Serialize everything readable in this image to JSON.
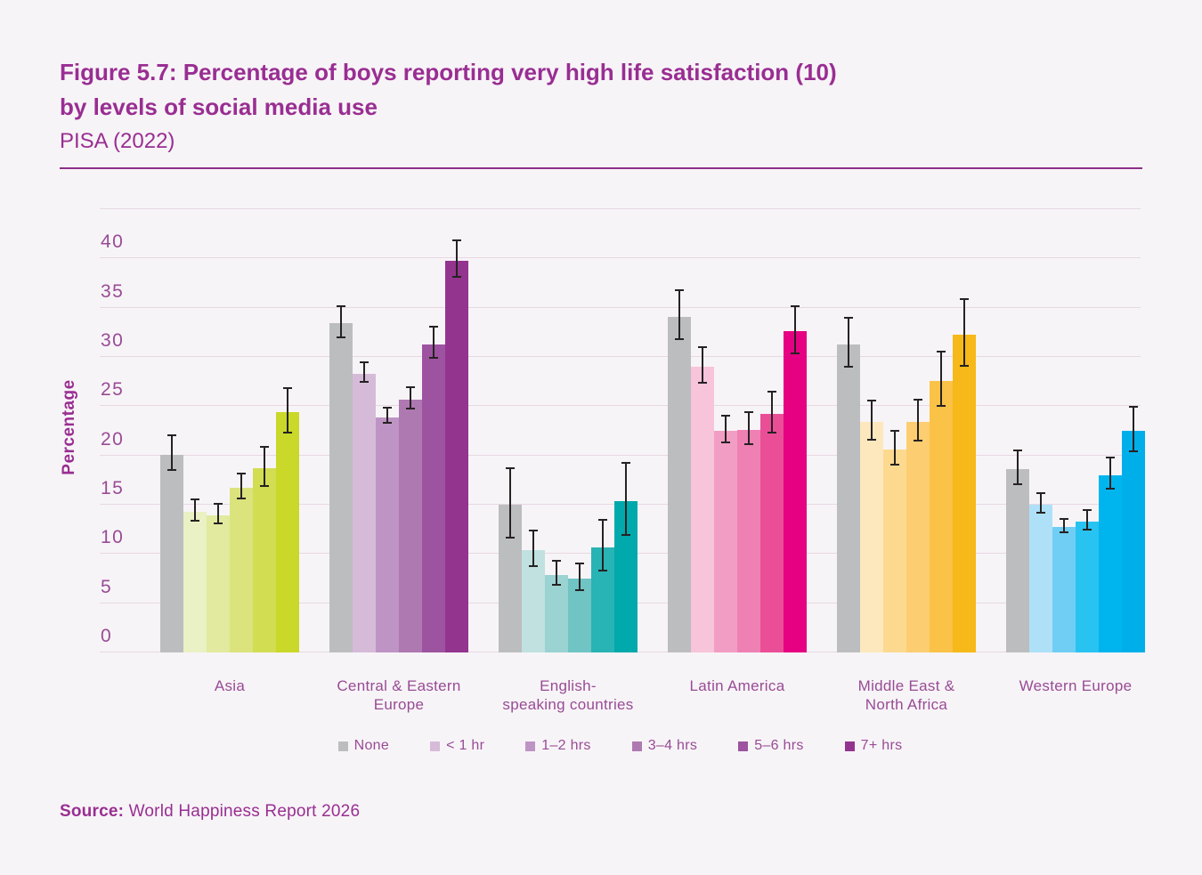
{
  "header": {
    "title_line1": "Figure 5.7: Percentage of boys reporting very high life satisfaction (10)",
    "title_line2": "by levels of social media use",
    "subtitle": "PISA (2022)"
  },
  "source": {
    "label": "Source:",
    "text": "World Happiness Report 2026"
  },
  "colors": {
    "background": "#f7f4f7",
    "title": "#992e92",
    "axis_text": "#984b95",
    "gridline": "#e7d8e4",
    "divider": "#8e2f88",
    "error_bar": "#262223",
    "none_bar": "#bcbdbf"
  },
  "chart_data": {
    "type": "bar",
    "title": "Figure 5.7: Percentage of boys reporting very high life satisfaction (10) by levels of social media use",
    "subtitle": "PISA (2022)",
    "xlabel": "",
    "ylabel": "Percentage",
    "ylim": [
      0,
      45
    ],
    "yticks": [
      0,
      5,
      10,
      15,
      20,
      25,
      30,
      35,
      40
    ],
    "grid": true,
    "legend_position": "bottom",
    "legend": [
      "None",
      "< 1 hr",
      "1–2 hrs",
      "3–4 hrs",
      "5–6 hrs",
      "7+ hrs"
    ],
    "legend_colors": [
      "#bcbdbf",
      "#d6bbd9",
      "#be94c5",
      "#ae78b1",
      "#9d53a0",
      "#93348f"
    ],
    "error_bars": true,
    "groups": [
      {
        "label": "Asia",
        "label_lines": [
          "Asia"
        ],
        "values": [
          20.1,
          14.3,
          13.9,
          16.7,
          18.7,
          24.4
        ],
        "errors": [
          1.7,
          1.0,
          0.9,
          1.2,
          1.9,
          2.2
        ],
        "colors": [
          "#bcbdbf",
          "#eaf1c5",
          "#e1ea9e",
          "#dbe37d",
          "#d2dd52",
          "#c9d829"
        ]
      },
      {
        "label": "Central & Eastern Europe",
        "label_lines": [
          "Central & Eastern",
          "Europe"
        ],
        "values": [
          33.4,
          28.3,
          23.9,
          25.7,
          31.3,
          39.8
        ],
        "errors": [
          1.5,
          0.9,
          0.7,
          1.0,
          1.5,
          1.8
        ],
        "colors": [
          "#bcbdbf",
          "#d6bbd9",
          "#be94c5",
          "#ae78b1",
          "#9d53a0",
          "#93348f"
        ]
      },
      {
        "label": "English-speaking countries",
        "label_lines": [
          "English-",
          "speaking countries"
        ],
        "values": [
          15.0,
          10.4,
          7.9,
          7.5,
          10.7,
          15.4
        ],
        "errors": [
          3.4,
          1.7,
          1.1,
          1.3,
          2.5,
          3.6
        ],
        "colors": [
          "#bcbdbf",
          "#c0e1e0",
          "#9bd2d2",
          "#70c4c4",
          "#28b3b4",
          "#00a9ab"
        ]
      },
      {
        "label": "Latin America",
        "label_lines": [
          "Latin America"
        ],
        "values": [
          34.1,
          29.0,
          22.5,
          22.6,
          24.2,
          32.6
        ],
        "errors": [
          2.4,
          1.7,
          1.3,
          1.5,
          2.0,
          2.3
        ],
        "colors": [
          "#bcbdbf",
          "#f7c4d9",
          "#f29dc3",
          "#ef80b3",
          "#ea4e97",
          "#e60082"
        ]
      },
      {
        "label": "Middle East & North Africa",
        "label_lines": [
          "Middle East &",
          "North Africa"
        ],
        "values": [
          31.3,
          23.4,
          20.6,
          23.4,
          27.6,
          32.3
        ],
        "errors": [
          2.4,
          1.9,
          1.6,
          2.0,
          2.7,
          3.3
        ],
        "colors": [
          "#bcbdbf",
          "#fde8bd",
          "#fdd990",
          "#fccd71",
          "#fac247",
          "#f7b819"
        ]
      },
      {
        "label": "Western Europe",
        "label_lines": [
          "Western Europe"
        ],
        "values": [
          18.6,
          15.0,
          12.7,
          13.3,
          18.0,
          22.5
        ],
        "errors": [
          1.6,
          0.9,
          0.6,
          0.9,
          1.5,
          2.2
        ],
        "colors": [
          "#bcbdbf",
          "#aee1f8",
          "#70cef5",
          "#28c3f1",
          "#00b5ee",
          "#00aeea"
        ]
      }
    ]
  }
}
